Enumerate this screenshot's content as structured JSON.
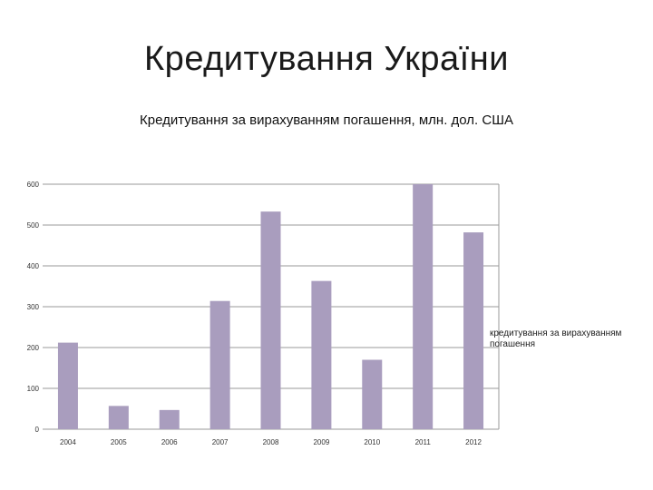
{
  "slide": {
    "title": "Кредитування України"
  },
  "chart_data": {
    "type": "bar",
    "title": "Кредитування за вирахуванням погашення, млн. дол. США",
    "categories": [
      "2004",
      "2005",
      "2006",
      "2007",
      "2008",
      "2009",
      "2010",
      "2011",
      "2012"
    ],
    "series": [
      {
        "name": "кредитування за вирахуванням погашення",
        "values": [
          212,
          57,
          47,
          314,
          533,
          363,
          170,
          600,
          482
        ],
        "color": "#a99dbe"
      }
    ],
    "ylim": [
      0,
      600
    ],
    "yticks": [
      0,
      100,
      200,
      300,
      400,
      500,
      600
    ],
    "grid": true,
    "legend": "right",
    "xlabel": "",
    "ylabel": ""
  }
}
